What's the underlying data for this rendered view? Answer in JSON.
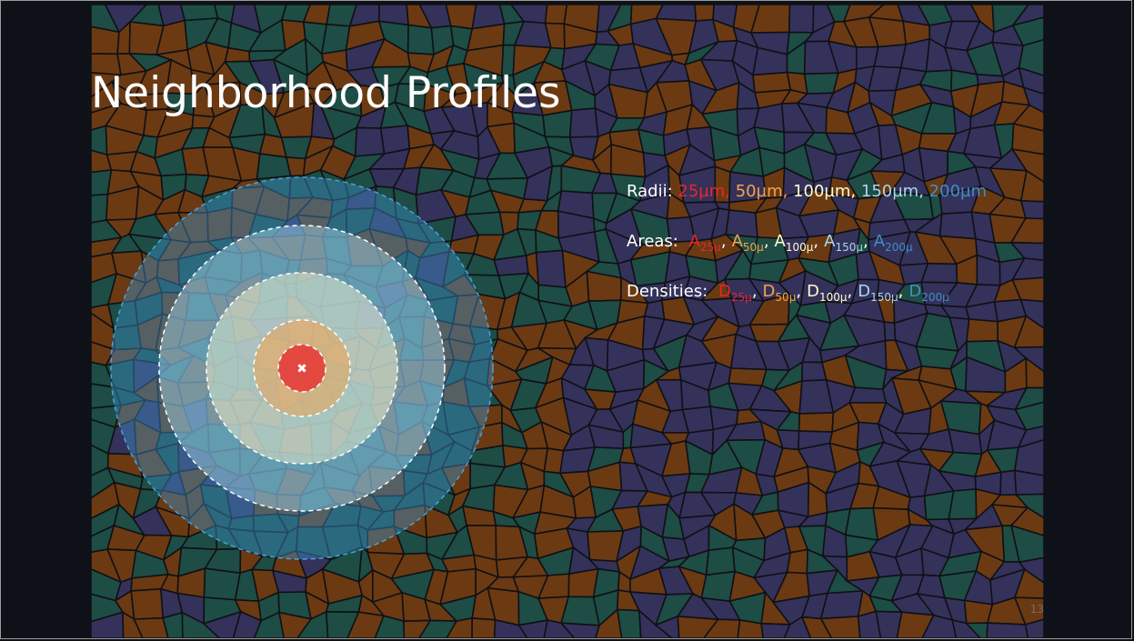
{
  "slide": {
    "title": "Neighborhood Profiles",
    "page_number": "13",
    "radii": {
      "label": "Radii:",
      "items": [
        {
          "text": "25µm,",
          "color": "#e8262b"
        },
        {
          "text": "50µm,",
          "color": "#f4a24b"
        },
        {
          "text": "100µm,",
          "color": "#fffbd0"
        },
        {
          "text": "150µm,",
          "color": "#a9d6ea"
        },
        {
          "text": "200µm",
          "color": "#3f8fc6"
        }
      ]
    },
    "areas": {
      "label": "Areas:",
      "items": [
        {
          "base": "A",
          "sub": "25µ",
          "sep": ",",
          "color": "#e8262b"
        },
        {
          "base": "A",
          "sub": "50µ",
          "sep": ",",
          "color": "#f4a24b"
        },
        {
          "base": "A",
          "sub": "100µ",
          "sep": ",",
          "color": "#fffbd0"
        },
        {
          "base": "A",
          "sub": "150µ",
          "sep": ",",
          "color": "#a9d6ea"
        },
        {
          "base": "A",
          "sub": "200µ",
          "sep": "",
          "color": "#3f8fc6"
        }
      ]
    },
    "densities": {
      "label": "Densities:",
      "items": [
        {
          "base": "D",
          "sub": "25µ",
          "sep": ",",
          "color": "#e8262b"
        },
        {
          "base": "D",
          "sub": "50µ",
          "sep": ",",
          "color": "#f4a24b"
        },
        {
          "base": "D",
          "sub": "100µ",
          "sep": ",",
          "color": "#fffbd0"
        },
        {
          "base": "D",
          "sub": "150µ",
          "sep": ",",
          "color": "#a9d6ea"
        },
        {
          "base": "D",
          "sub": "200µ",
          "sep": "",
          "color": "#3f8fc6"
        }
      ]
    },
    "rings": [
      {
        "name": "200µm",
        "color": "#3f8fc6"
      },
      {
        "name": "150µm",
        "color": "#a9d6ea"
      },
      {
        "name": "100µm",
        "color": "#fffbd0"
      },
      {
        "name": "50µm",
        "color": "#f4a24b"
      },
      {
        "name": "25µm",
        "color": "#e8262b"
      }
    ],
    "tissue_colors": [
      "#6b3a12",
      "#1d4d44",
      "#34325b"
    ]
  }
}
